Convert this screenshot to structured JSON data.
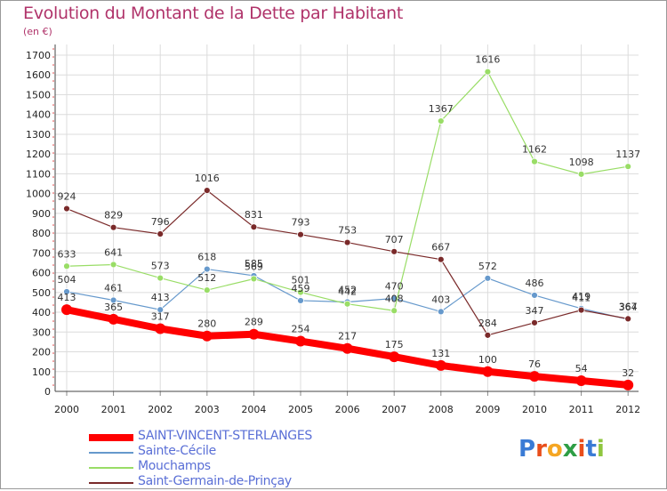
{
  "title": "Evolution du Montant de la Dette par Habitant",
  "subtitle": "(en €)",
  "logo": {
    "letters": [
      "P",
      "r",
      "o",
      "x",
      "i",
      "t",
      "i"
    ],
    "colors": [
      "#3a7bd5",
      "#e94e1b",
      "#f5a623",
      "#2e9e45",
      "#e94e1b",
      "#3a7bd5",
      "#8fc63f"
    ]
  },
  "chart_data": {
    "type": "line",
    "categories": [
      "2000",
      "2001",
      "2002",
      "2003",
      "2004",
      "2005",
      "2006",
      "2007",
      "2008",
      "2009",
      "2010",
      "2011",
      "2012"
    ],
    "ylim": [
      0,
      1700
    ],
    "yticks": [
      0,
      100,
      200,
      300,
      400,
      500,
      600,
      700,
      800,
      900,
      1000,
      1100,
      1200,
      1300,
      1400,
      1500,
      1600,
      1700
    ],
    "grid": true,
    "legend_position": "bottom-left",
    "series": [
      {
        "name": "SAINT-VINCENT-STERLANGES",
        "color": "#ff0000",
        "width": 8,
        "values": [
          413,
          365,
          317,
          280,
          289,
          254,
          217,
          175,
          131,
          100,
          76,
          54,
          32
        ],
        "labels": [
          "413",
          "365",
          "317",
          "280",
          "289",
          "254",
          "217",
          "175",
          "131",
          "100",
          "76",
          "54",
          "32"
        ]
      },
      {
        "name": "Sainte-Cécile",
        "color": "#6699cc",
        "width": 1,
        "values": [
          504,
          461,
          413,
          618,
          585,
          459,
          452,
          470,
          403,
          572,
          486,
          419,
          364
        ],
        "labels": [
          "504",
          "461",
          "413",
          "618",
          "585",
          "459",
          "452",
          "470",
          "403",
          "572",
          "486",
          "419",
          "364"
        ]
      },
      {
        "name": "Mouchamps",
        "color": "#99dd66",
        "width": 1,
        "values": [
          633,
          641,
          573,
          512,
          569,
          501,
          442,
          408,
          1367,
          1616,
          1162,
          1098,
          1137
        ],
        "labels": [
          "633",
          "641",
          "573",
          "512",
          "569",
          "501",
          "442",
          "408",
          "1367",
          "1616",
          "1162",
          "1098",
          "1137"
        ]
      },
      {
        "name": "Saint-Germain-de-Prinçay",
        "color": "#7a2a2a",
        "width": 1,
        "values": [
          924,
          829,
          796,
          1016,
          831,
          793,
          753,
          707,
          667,
          284,
          347,
          411,
          367
        ],
        "labels": [
          "924",
          "829",
          "796",
          "1016",
          "831",
          "793",
          "753",
          "707",
          "667",
          "284",
          "347",
          "411",
          "367"
        ]
      }
    ]
  }
}
